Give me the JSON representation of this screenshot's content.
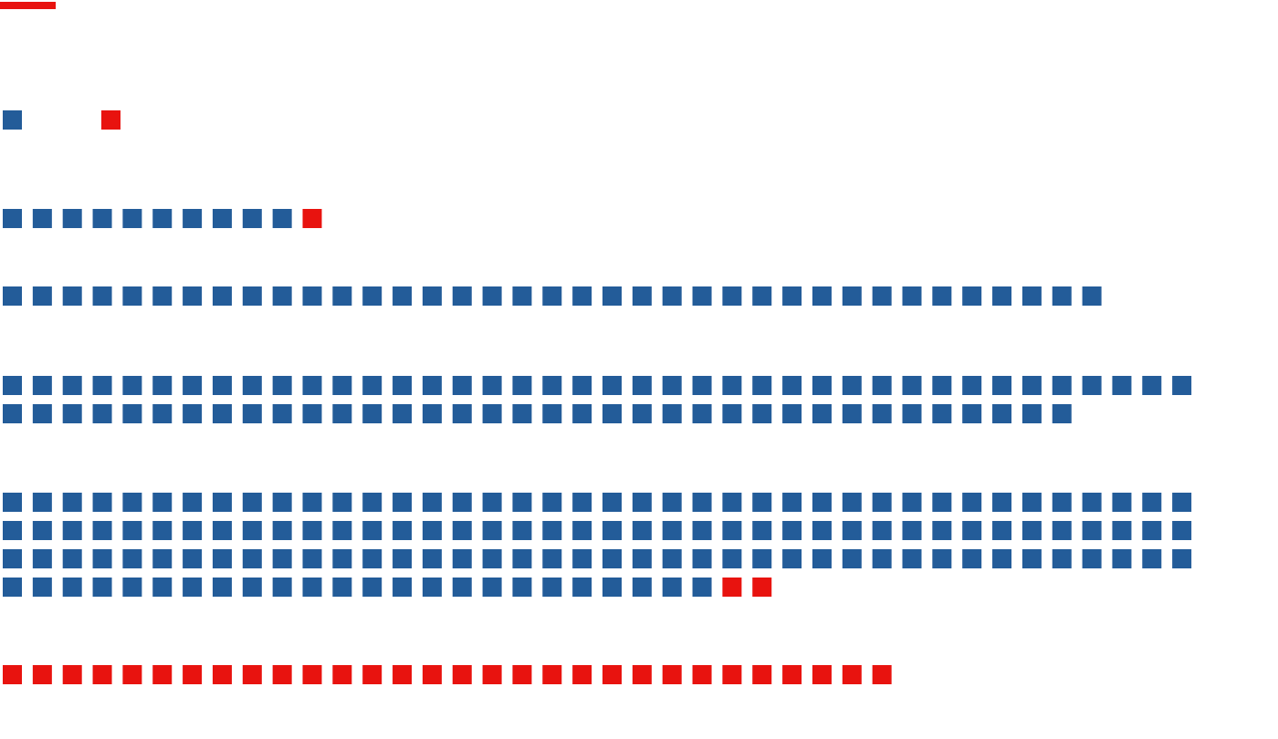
{
  "chart_data": {
    "type": "waffle",
    "units_per_row": 40,
    "colors": {
      "series_a": "#235c99",
      "series_b": "#e8130f"
    },
    "rows": [
      {
        "series_a": 1,
        "series_b": 1
      },
      {
        "series_a": 10,
        "series_b": 1
      },
      {
        "series_a": 37,
        "series_b": 0
      },
      {
        "series_a": 76,
        "series_b": 0
      },
      {
        "series_a": 144,
        "series_b": 2
      },
      {
        "series_a": 0,
        "series_b": 30
      }
    ]
  }
}
